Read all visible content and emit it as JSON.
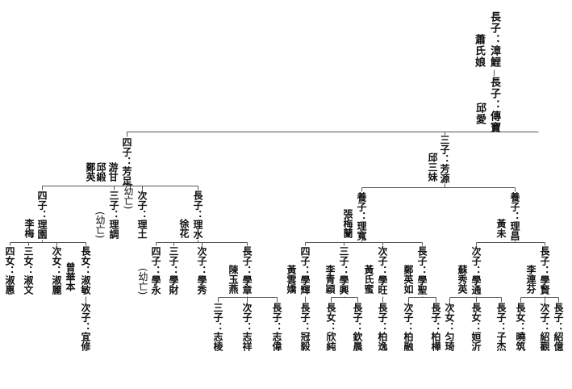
{
  "people": [
    {
      "id": "r1",
      "text": "長子：漳鯉"
    },
    {
      "id": "r1s",
      "text": "蕭氏娘"
    },
    {
      "id": "r2",
      "text": "長子：傳寶"
    },
    {
      "id": "r2s",
      "text": "邱愛"
    },
    {
      "id": "fz",
      "text": "四子：芳足"
    },
    {
      "id": "fz_s1",
      "text": "游甘"
    },
    {
      "id": "fz_s2",
      "text": "邱緞"
    },
    {
      "id": "fz_s3",
      "text": "鄭英"
    },
    {
      "id": "fy",
      "text": "三子：芳源"
    },
    {
      "id": "fy_s",
      "text": "邱三妹"
    },
    {
      "id": "ly",
      "text": "四子：理園"
    },
    {
      "id": "ly_s",
      "text": "李梅"
    },
    {
      "id": "ld",
      "text": "三子：理調"
    },
    {
      "id": "ld_n",
      "text": "(幼亡)"
    },
    {
      "id": "lt",
      "text": "次子：理土"
    },
    {
      "id": "lt_n",
      "text": "(幼亡)"
    },
    {
      "id": "ls",
      "text": "長子：理水"
    },
    {
      "id": "ls_s",
      "text": "徐花"
    },
    {
      "id": "sh",
      "text": "四女：淑惠"
    },
    {
      "id": "sw",
      "text": "三女：淑文"
    },
    {
      "id": "sl",
      "text": "次女：淑麗"
    },
    {
      "id": "sm_s",
      "text": "曾華本"
    },
    {
      "id": "sm",
      "text": "長女：淑敏"
    },
    {
      "id": "yx",
      "text": "次子：宜修"
    },
    {
      "id": "xy",
      "text": "四子：學永"
    },
    {
      "id": "xy_n",
      "text": "(幼亡)"
    },
    {
      "id": "xc",
      "text": "三子：學財"
    },
    {
      "id": "xx",
      "text": "次子：學秀"
    },
    {
      "id": "xz",
      "text": "長子：學章"
    },
    {
      "id": "xz_s",
      "text": "陳玉燕"
    },
    {
      "id": "zl",
      "text": "三子：志棱"
    },
    {
      "id": "zx",
      "text": "次子：志祥"
    },
    {
      "id": "zw",
      "text": "長子：志偉"
    },
    {
      "id": "lk",
      "text": "養子：理寬"
    },
    {
      "id": "lk_s",
      "text": "張梅蘭"
    },
    {
      "id": "xh",
      "text": "四子：學輝"
    },
    {
      "id": "xh_s",
      "text": "黃雲嬌"
    },
    {
      "id": "xg",
      "text": "三子：學興"
    },
    {
      "id": "xg_s",
      "text": "李青穎"
    },
    {
      "id": "xw",
      "text": "次子：學旺"
    },
    {
      "id": "xw_s",
      "text": "黃氏蜜"
    },
    {
      "id": "xs",
      "text": "長子：學聖"
    },
    {
      "id": "xs_s",
      "text": "鄭英如"
    },
    {
      "id": "gy",
      "text": "長子：冠毅"
    },
    {
      "id": "xc2",
      "text": "長女：欣純"
    },
    {
      "id": "qc",
      "text": "長子：欽晨"
    },
    {
      "id": "by",
      "text": "長子：柏逸"
    },
    {
      "id": "br",
      "text": "次子：柏融"
    },
    {
      "id": "bh",
      "text": "長子：柏樺"
    },
    {
      "id": "lc",
      "text": "養子：理昌"
    },
    {
      "id": "lc_s",
      "text": "黃未"
    },
    {
      "id": "xt",
      "text": "次子：學通"
    },
    {
      "id": "xt_s",
      "text": "蘇秀英"
    },
    {
      "id": "xn",
      "text": "長子：學賢"
    },
    {
      "id": "xn_s",
      "text": "李連芬"
    },
    {
      "id": "yq",
      "text": "次女：匀琦"
    },
    {
      "id": "hy",
      "text": "長女：姮沂"
    },
    {
      "id": "zj",
      "text": "長子：子杰"
    },
    {
      "id": "xz2",
      "text": "長女：曉筑"
    },
    {
      "id": "sg",
      "text": "次子：紹觀"
    },
    {
      "id": "sy",
      "text": "長子：紹億"
    }
  ],
  "colors": {
    "text": "#111111",
    "line": "#555555",
    "background": "#ffffff"
  }
}
